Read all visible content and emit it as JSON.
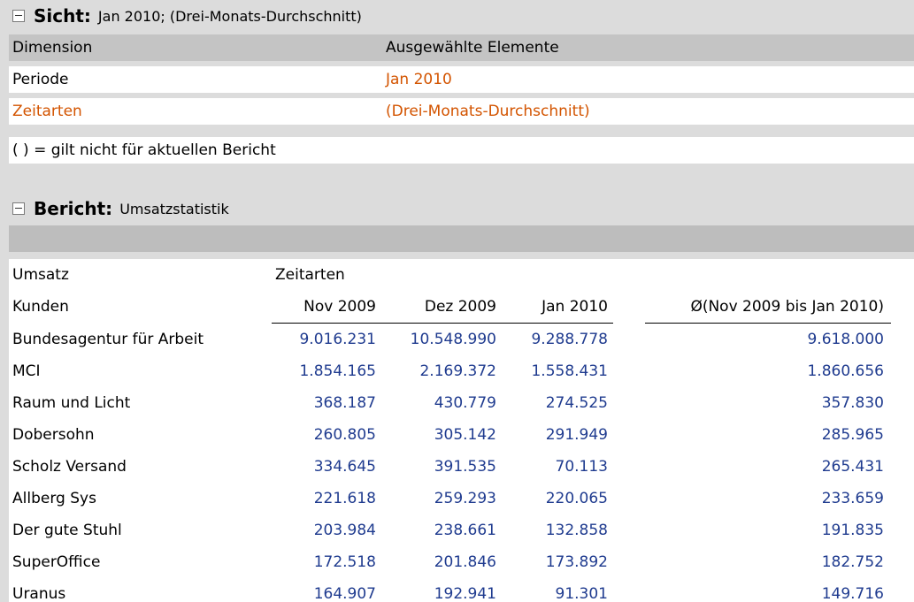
{
  "view": {
    "key": "Sicht:",
    "value": "Jan 2010; (Drei-Monats-Durchschnitt)",
    "header": {
      "dimension": "Dimension",
      "selected": "Ausgewählte Elemente"
    },
    "rows": [
      {
        "dimension": "Periode",
        "selected": "Jan 2010"
      },
      {
        "dimension": "Zeitarten",
        "selected": "(Drei-Monats-Durchschnitt)"
      }
    ],
    "note": "( ) = gilt nicht für aktuellen Bericht"
  },
  "report": {
    "key": "Bericht:",
    "value": "Umsatzstatistik",
    "measure_label": "Umsatz",
    "column_dim_label": "Zeitarten",
    "row_dim_label": "Kunden",
    "columns": [
      "Nov 2009",
      "Dez 2009",
      "Jan 2010",
      "Ø(Nov 2009 bis Jan 2010)"
    ],
    "rows": [
      {
        "name": "Bundesagentur für Arbeit",
        "values": [
          "9.016.231",
          "10.548.990",
          "9.288.778",
          "9.618.000"
        ]
      },
      {
        "name": "MCI",
        "values": [
          "1.854.165",
          "2.169.372",
          "1.558.431",
          "1.860.656"
        ]
      },
      {
        "name": "Raum und Licht",
        "values": [
          "368.187",
          "430.779",
          "274.525",
          "357.830"
        ]
      },
      {
        "name": "Dobersohn",
        "values": [
          "260.805",
          "305.142",
          "291.949",
          "285.965"
        ]
      },
      {
        "name": "Scholz Versand",
        "values": [
          "334.645",
          "391.535",
          "70.113",
          "265.431"
        ]
      },
      {
        "name": "Allberg Sys",
        "values": [
          "221.618",
          "259.293",
          "220.065",
          "233.659"
        ]
      },
      {
        "name": "Der gute Stuhl",
        "values": [
          "203.984",
          "238.661",
          "132.858",
          "191.835"
        ]
      },
      {
        "name": "SuperOffice",
        "values": [
          "172.518",
          "201.846",
          "173.892",
          "182.752"
        ]
      },
      {
        "name": "Uranus",
        "values": [
          "164.907",
          "192.941",
          "91.301",
          "149.716"
        ]
      }
    ]
  },
  "colors": {
    "link_orange": "#d35400",
    "value_blue": "#1f3b8f",
    "panel_gray": "#dcdcdc"
  }
}
